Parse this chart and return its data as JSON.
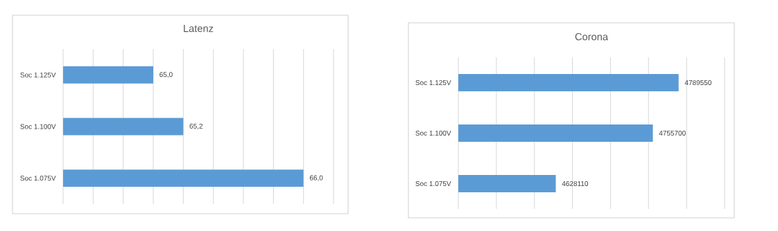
{
  "chart_data": [
    {
      "type": "bar",
      "orientation": "horizontal",
      "title": "Latenz",
      "categories": [
        "Soc 1.125V",
        "Soc 1.100V",
        "Soc 1.075V"
      ],
      "values": [
        65.0,
        65.2,
        66.0
      ],
      "value_labels": [
        "65,0",
        "65,2",
        "66,0"
      ],
      "color": "#5b9bd5",
      "xlim": [
        64.4,
        66.2
      ],
      "xticks": [
        {
          "value": 64.4,
          "label": null
        },
        {
          "value": 64.6,
          "label": null
        },
        {
          "value": 64.8,
          "label": null
        },
        {
          "value": 65.0,
          "label": null
        },
        {
          "value": 65.2,
          "label": null
        },
        {
          "value": 65.4,
          "label": null
        },
        {
          "value": 65.6,
          "label": null
        },
        {
          "value": 65.8,
          "label": null
        },
        {
          "value": 66.0,
          "label": null
        },
        {
          "value": 66.2,
          "label": null
        }
      ],
      "grid": "x",
      "tick_labels": "y"
    },
    {
      "type": "bar",
      "orientation": "horizontal",
      "title": "Corona",
      "categories": [
        "Soc 1.125V",
        "Soc 1.100V",
        "Soc 1.075V"
      ],
      "values": [
        4789550,
        4755700,
        4628110
      ],
      "value_labels": [
        "4789550",
        "4755700",
        "4628110"
      ],
      "color": "#5b9bd5",
      "xlim": [
        4500000,
        4850000
      ],
      "xticks": [
        {
          "value": 4500000,
          "label": null
        },
        {
          "value": 4550000,
          "label": null
        },
        {
          "value": 4600000,
          "label": null
        },
        {
          "value": 4650000,
          "label": null
        },
        {
          "value": 4700000,
          "label": null
        },
        {
          "value": 4750000,
          "label": null
        },
        {
          "value": 4800000,
          "label": null
        },
        {
          "value": 4850000,
          "label": null
        }
      ],
      "grid": "x",
      "tick_labels": "y"
    }
  ]
}
